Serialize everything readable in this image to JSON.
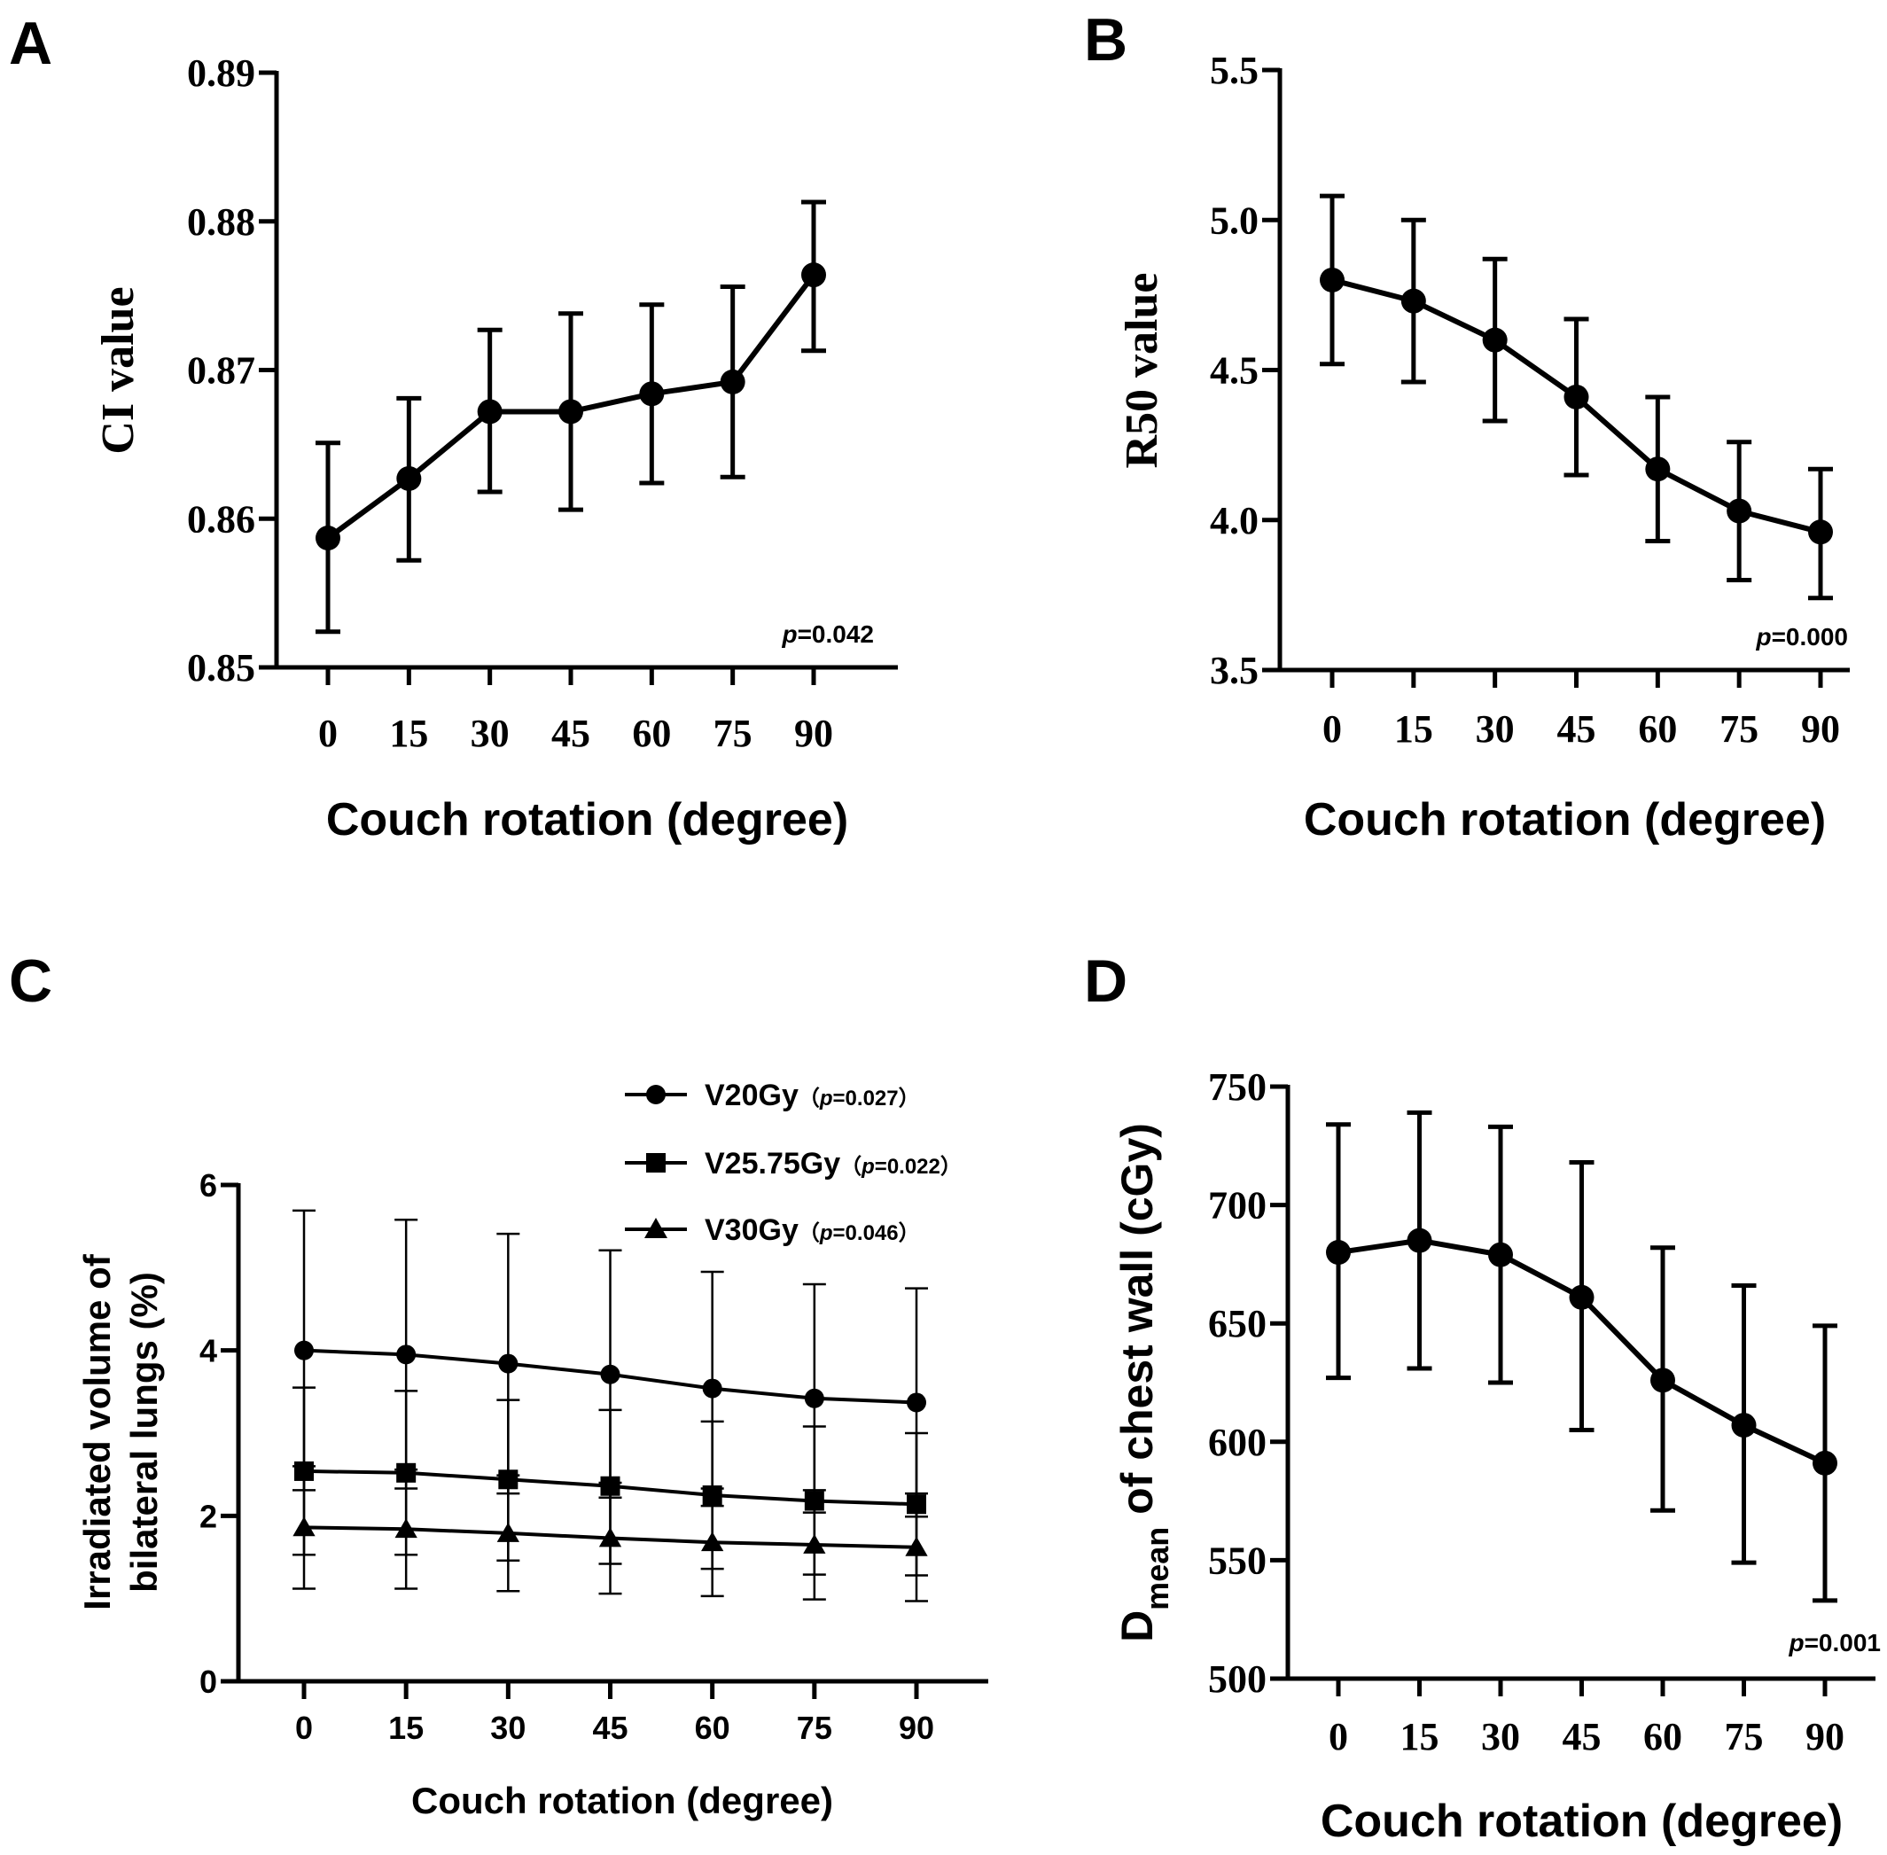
{
  "chart_data": [
    {
      "panel": "A",
      "type": "line",
      "xlabel": "Couch rotation (degree)",
      "ylabel": "CI value",
      "categories": [
        "0",
        "15",
        "30",
        "45",
        "60",
        "75",
        "90"
      ],
      "ylim": [
        0.85,
        0.89
      ],
      "yticks": [
        "0.85",
        "0.86",
        "0.87",
        "0.88",
        "0.89"
      ],
      "series": [
        {
          "name": "CI",
          "values": [
            0.8587,
            0.8627,
            0.8672,
            0.8672,
            0.8684,
            0.8692,
            0.8764
          ],
          "err_low": [
            0.8524,
            0.8572,
            0.8618,
            0.8606,
            0.8624,
            0.8628,
            0.8713
          ],
          "err_high": [
            0.8651,
            0.8681,
            0.8727,
            0.8738,
            0.8744,
            0.8756,
            0.8813
          ]
        }
      ],
      "p_prefix": "p",
      "p_text": "=0.042"
    },
    {
      "panel": "B",
      "type": "line",
      "xlabel": "Couch rotation (degree)",
      "ylabel": "R50 value",
      "categories": [
        "0",
        "15",
        "30",
        "45",
        "60",
        "75",
        "90"
      ],
      "ylim": [
        3.5,
        5.5
      ],
      "yticks": [
        "3.5",
        "4.0",
        "4.5",
        "5.0",
        "5.5"
      ],
      "series": [
        {
          "name": "R50",
          "values": [
            4.8,
            4.73,
            4.6,
            4.41,
            4.17,
            4.03,
            3.96
          ],
          "err_low": [
            4.52,
            4.46,
            4.33,
            4.15,
            3.93,
            3.8,
            3.74
          ],
          "err_high": [
            5.08,
            5.0,
            4.87,
            4.67,
            4.41,
            4.26,
            4.17
          ]
        }
      ],
      "p_prefix": "p",
      "p_text": "=0.000"
    },
    {
      "panel": "C",
      "type": "line",
      "xlabel": "Couch rotation (degree)",
      "ylabel_line1": "Irradiated volume of",
      "ylabel_line2": "bilateral lungs (%)",
      "categories": [
        "0",
        "15",
        "30",
        "45",
        "60",
        "75",
        "90"
      ],
      "ylim": [
        0,
        6
      ],
      "yticks": [
        "0",
        "2",
        "4",
        "6"
      ],
      "series": [
        {
          "name": "V20Gy",
          "p_open": "（",
          "p_prefix": "p",
          "p_text": "=0.027）",
          "marker": "circle",
          "values": [
            4.0,
            3.95,
            3.84,
            3.71,
            3.54,
            3.42,
            3.37
          ],
          "err_low": [
            2.31,
            2.33,
            2.27,
            2.22,
            2.12,
            2.04,
            1.99
          ],
          "err_high": [
            5.69,
            5.58,
            5.41,
            5.21,
            4.95,
            4.8,
            4.75
          ]
        },
        {
          "name": "V25.75Gy",
          "p_open": "（",
          "p_prefix": "p",
          "p_text": "=0.022）",
          "marker": "square",
          "values": [
            2.54,
            2.52,
            2.44,
            2.36,
            2.25,
            2.18,
            2.14
          ],
          "err_low": [
            1.53,
            1.53,
            1.46,
            1.42,
            1.36,
            1.29,
            1.28
          ],
          "err_high": [
            3.55,
            3.51,
            3.4,
            3.28,
            3.14,
            3.08,
            3.0
          ]
        },
        {
          "name": "V30Gy",
          "p_open": "（",
          "p_prefix": "p",
          "p_text": "=0.046）",
          "marker": "triangle",
          "values": [
            1.86,
            1.84,
            1.79,
            1.73,
            1.68,
            1.65,
            1.62
          ],
          "err_low": [
            1.12,
            1.12,
            1.09,
            1.06,
            1.03,
            0.99,
            0.97
          ],
          "err_high": [
            2.6,
            2.56,
            2.49,
            2.4,
            2.33,
            2.31,
            2.27
          ]
        }
      ]
    },
    {
      "panel": "D",
      "type": "line",
      "xlabel": "Couch rotation (degree)",
      "ylabel_main": "D",
      "ylabel_sub": "mean",
      "ylabel_rest": " of chest wall (cGy)",
      "categories": [
        "0",
        "15",
        "30",
        "45",
        "60",
        "75",
        "90"
      ],
      "ylim": [
        500,
        750
      ],
      "yticks": [
        "500",
        "550",
        "600",
        "650",
        "700",
        "750"
      ],
      "series": [
        {
          "name": "Dmean",
          "values": [
            680,
            685,
            679,
            661,
            626,
            607,
            591
          ],
          "err_low": [
            627,
            631,
            625,
            605,
            571,
            549,
            533
          ],
          "err_high": [
            734,
            739,
            733,
            718,
            682,
            666,
            649
          ]
        }
      ],
      "p_prefix": "p",
      "p_text": "=0.001"
    }
  ],
  "panels": {
    "A": "A",
    "B": "B",
    "C": "C",
    "D": "D"
  }
}
